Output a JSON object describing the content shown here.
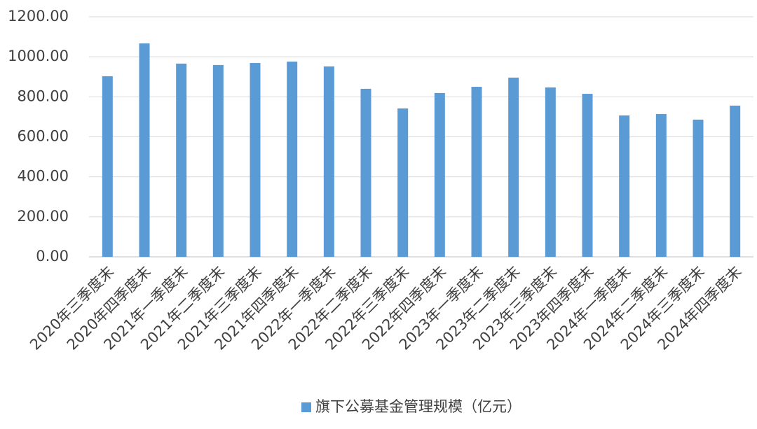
{
  "chart_data": {
    "type": "bar",
    "categories": [
      "2020年三季度末",
      "2020年四季度末",
      "2021年一季度末",
      "2021年二季度末",
      "2021年三季度末",
      "2021年四季度末",
      "2022年一季度末",
      "2022年二季度末",
      "2022年三季度末",
      "2022年四季度末",
      "2023年一季度末",
      "2023年二季度末",
      "2023年三季度末",
      "2023年四季度末",
      "2024年一季度末",
      "2024年二季度末",
      "2024年三季度末",
      "2024年四季度末"
    ],
    "series": [
      {
        "name": "旗下公募基金管理规模（亿元）",
        "color": "#5b9bd5",
        "values": [
          903,
          1067,
          966,
          959,
          969,
          976,
          952,
          840,
          742,
          819,
          850,
          896,
          847,
          815,
          707,
          714,
          686,
          756
        ]
      }
    ],
    "ylim": [
      0,
      1200
    ],
    "yticks": [
      {
        "value": 0,
        "label": "0.00"
      },
      {
        "value": 200,
        "label": "200.00"
      },
      {
        "value": 400,
        "label": "400.00"
      },
      {
        "value": 600,
        "label": "600.00"
      },
      {
        "value": 800,
        "label": "800.00"
      },
      {
        "value": 1000,
        "label": "1000.00"
      },
      {
        "value": 1200,
        "label": "1200.00"
      }
    ],
    "grid": true,
    "legend": "bottom"
  }
}
